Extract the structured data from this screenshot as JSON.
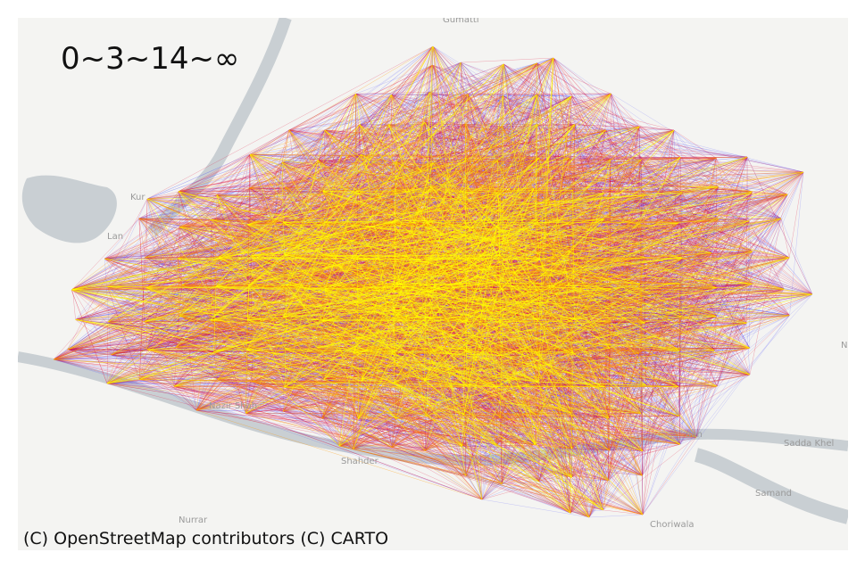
{
  "legend": {
    "text": "0~3~14~∞"
  },
  "attribution": "(C) OpenStreetMap contributors (C) CARTO",
  "places": [
    "Gumatti",
    "Kur",
    "Lan",
    "Nazir Shah",
    "Shahder",
    "Nurrar",
    "Choriwala",
    "Sadda Khel",
    "Samand",
    "dan",
    "N"
  ],
  "colors": {
    "low": "#3333ff",
    "mid": "#e0103a",
    "high": "#ff9a00",
    "top": "#ffff00",
    "water": "#c9cfd3",
    "land": "#f4f4f2"
  }
}
